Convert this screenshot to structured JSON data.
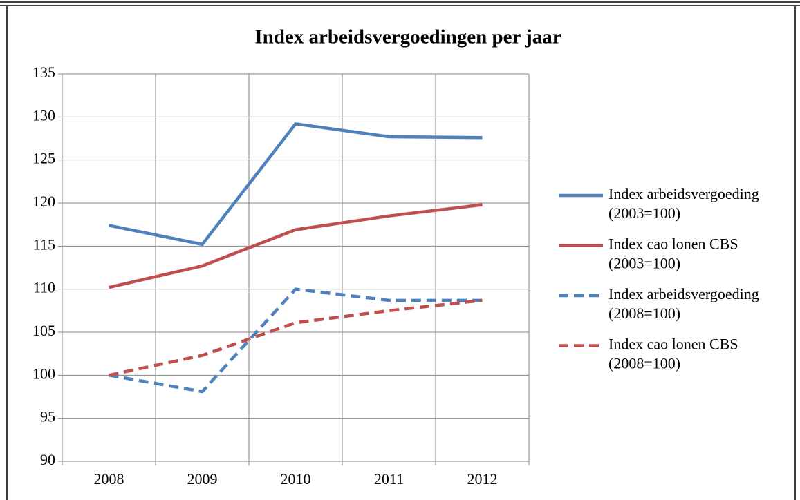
{
  "chart_data": {
    "type": "line",
    "title": "Index arbeidsvergoedingen per jaar",
    "categories": [
      "2008",
      "2009",
      "2010",
      "2011",
      "2012"
    ],
    "series": [
      {
        "name": "Index arbeidsvergoeding (2003=100)",
        "color": "#4f81bd",
        "dashed": false,
        "values": [
          117.4,
          115.2,
          129.2,
          127.7,
          127.6
        ]
      },
      {
        "name": "Index cao lonen CBS (2003=100)",
        "color": "#c0504d",
        "dashed": false,
        "values": [
          110.2,
          112.7,
          116.9,
          118.5,
          119.8
        ]
      },
      {
        "name": "Index arbeidsvergoeding (2008=100)",
        "color": "#4f81bd",
        "dashed": true,
        "values": [
          100,
          98.1,
          110.0,
          108.7,
          108.7
        ]
      },
      {
        "name": "Index cao lonen CBS (2008=100)",
        "color": "#c0504d",
        "dashed": true,
        "values": [
          100,
          102.3,
          106.1,
          107.5,
          108.7
        ]
      }
    ],
    "ylim": [
      90,
      135
    ],
    "yticks": [
      90,
      95,
      100,
      105,
      110,
      115,
      120,
      125,
      130,
      135
    ],
    "grid": true,
    "legend": "right"
  }
}
